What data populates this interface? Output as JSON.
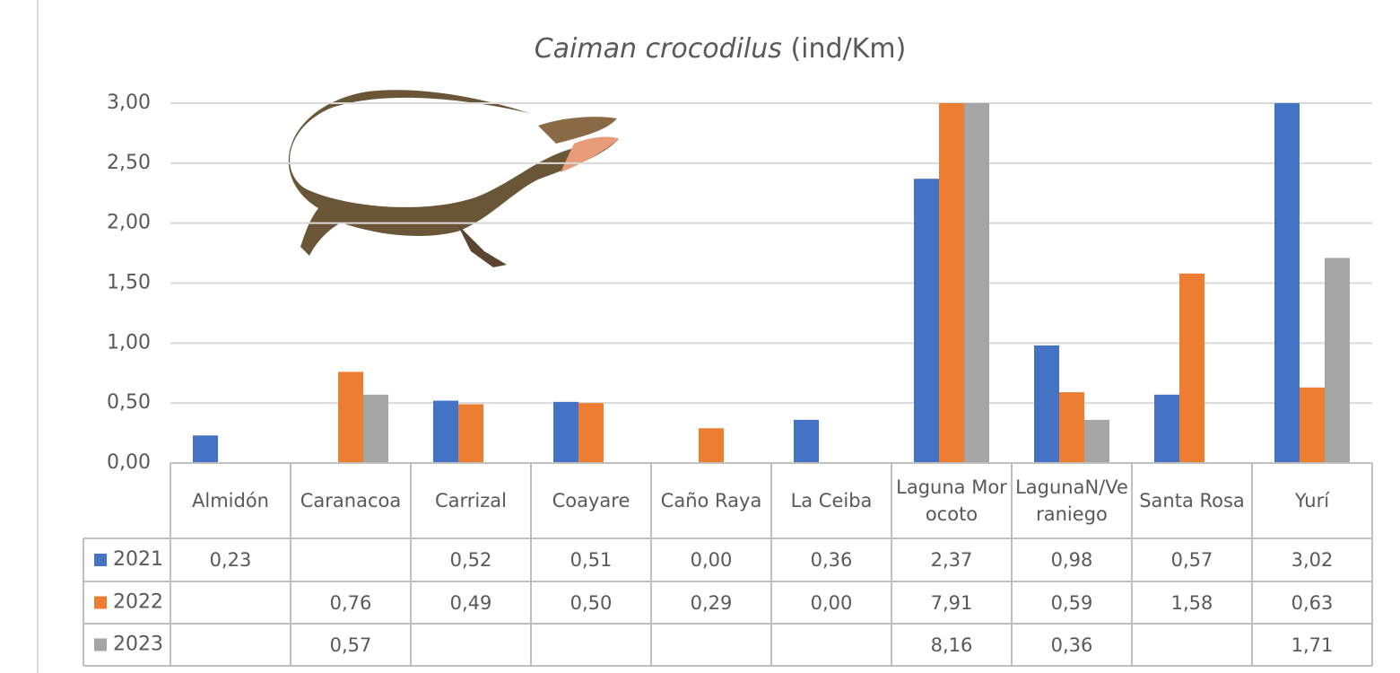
{
  "chart_data": {
    "type": "bar",
    "title": {
      "species": "Caiman crocodilus",
      "unit": "(ind/Km)"
    },
    "categories": [
      "Almidón",
      "Caranacoa",
      "Carrizal",
      "Coayare",
      "Caño Raya",
      "La Ceiba",
      "Laguna Morocoto",
      "LagunaN/Veraniego",
      "Santa Rosa",
      "Yurí"
    ],
    "series": [
      {
        "name": "2021",
        "color": "#4472c4",
        "values": [
          0.23,
          null,
          0.52,
          0.51,
          0.0,
          0.36,
          2.37,
          0.98,
          0.57,
          3.02
        ],
        "value_labels": [
          "0,23",
          null,
          "0,52",
          "0,51",
          "0,00",
          "0,36",
          "2,37",
          "0,98",
          "0,57",
          "3,02"
        ]
      },
      {
        "name": "2022",
        "color": "#ed7d31",
        "values": [
          null,
          0.76,
          0.49,
          0.5,
          0.29,
          0.0,
          7.91,
          0.59,
          1.58,
          0.63
        ],
        "value_labels": [
          null,
          "0,76",
          "0,49",
          "0,50",
          "0,29",
          "0,00",
          "7,91",
          "0,59",
          "1,58",
          "0,63"
        ]
      },
      {
        "name": "2023",
        "color": "#a5a5a5",
        "values": [
          null,
          0.57,
          null,
          null,
          null,
          null,
          8.16,
          0.36,
          null,
          1.71
        ],
        "value_labels": [
          null,
          "0,57",
          null,
          null,
          null,
          null,
          "8,16",
          "0,36",
          null,
          "1,71"
        ]
      }
    ],
    "ylim": [
      0,
      3
    ],
    "yticks": [
      {
        "value": 0,
        "label": "0,00"
      },
      {
        "value": 0.5,
        "label": "0,50"
      },
      {
        "value": 1,
        "label": "1,00"
      },
      {
        "value": 1.5,
        "label": "1,50"
      },
      {
        "value": 2,
        "label": "2,00"
      },
      {
        "value": 2.5,
        "label": "2,50"
      },
      {
        "value": 3,
        "label": "3,00"
      }
    ],
    "grid": true
  }
}
